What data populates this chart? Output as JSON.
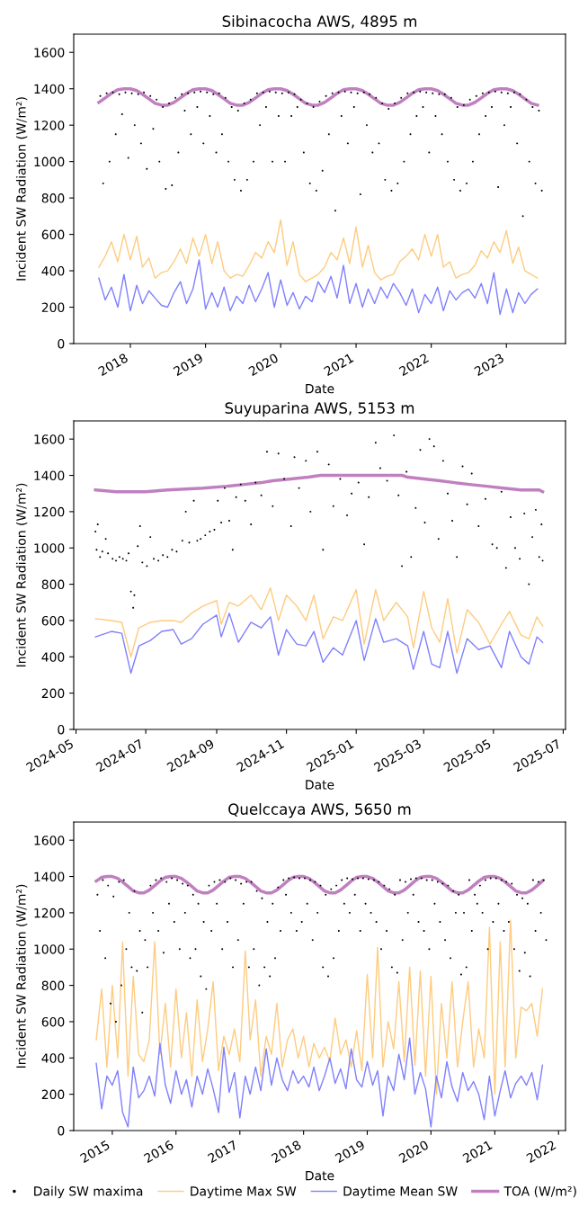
{
  "chart_data": [
    {
      "type": "line",
      "title": "Sibinacocha AWS, 4895 m",
      "xlabel": "Date",
      "ylabel": "Incident SW Radiation (W/m²)",
      "xlim": [
        "2017-04-01",
        "2023-10-15"
      ],
      "xticks": [
        "2018",
        "2019",
        "2020",
        "2021",
        "2022",
        "2023"
      ],
      "ylim": [
        0,
        1700
      ],
      "yticks": [
        0,
        200,
        400,
        600,
        800,
        1000,
        1200,
        1400,
        1600
      ],
      "x": [
        "2017-08",
        "2017-09",
        "2017-10",
        "2017-11",
        "2017-12",
        "2018-01",
        "2018-02",
        "2018-03",
        "2018-04",
        "2018-05",
        "2018-06",
        "2018-07",
        "2018-08",
        "2018-09",
        "2018-10",
        "2018-11",
        "2018-12",
        "2019-01",
        "2019-02",
        "2019-03",
        "2019-04",
        "2019-05",
        "2019-06",
        "2019-07",
        "2019-08",
        "2019-09",
        "2019-10",
        "2019-11",
        "2019-12",
        "2020-01",
        "2020-02",
        "2020-03",
        "2020-04",
        "2020-05",
        "2020-06",
        "2020-07",
        "2020-08",
        "2020-09",
        "2020-10",
        "2020-11",
        "2020-12",
        "2021-01",
        "2021-02",
        "2021-03",
        "2021-04",
        "2021-05",
        "2021-06",
        "2021-07",
        "2021-08",
        "2021-09",
        "2021-10",
        "2021-11",
        "2021-12",
        "2022-01",
        "2022-02",
        "2022-03",
        "2022-04",
        "2022-05",
        "2022-06",
        "2022-07",
        "2022-08",
        "2022-09",
        "2022-10",
        "2022-11",
        "2022-12",
        "2023-01",
        "2023-02",
        "2023-03",
        "2023-04",
        "2023-05",
        "2023-06"
      ],
      "series": [
        {
          "type": "scatter",
          "color": "#000000",
          "x": [
            "2017-08-08",
            "2017-08-22",
            "2017-09-08",
            "2017-09-22",
            "2017-10-08",
            "2017-10-22",
            "2017-11-08",
            "2017-11-22",
            "2017-12-08",
            "2017-12-22",
            "2018-01-08",
            "2018-01-22",
            "2018-02-08",
            "2018-02-22",
            "2018-03-08",
            "2018-03-22",
            "2018-04-08",
            "2018-04-22",
            "2018-05-08",
            "2018-05-22",
            "2018-06-08",
            "2018-06-22",
            "2018-07-08",
            "2018-07-22",
            "2018-08-08",
            "2018-08-22",
            "2018-09-08",
            "2018-09-22",
            "2018-10-08",
            "2018-10-22",
            "2018-11-08",
            "2018-11-22",
            "2018-12-08",
            "2018-12-22",
            "2019-01-08",
            "2019-01-22",
            "2019-02-08",
            "2019-02-22",
            "2019-03-08",
            "2019-03-22",
            "2019-04-08",
            "2019-04-22",
            "2019-05-08",
            "2019-05-22",
            "2019-06-08",
            "2019-06-22",
            "2019-07-08",
            "2019-07-22",
            "2019-08-08",
            "2019-08-22",
            "2019-09-08",
            "2019-09-22",
            "2019-10-08",
            "2019-10-22",
            "2019-11-08",
            "2019-11-22",
            "2019-12-08",
            "2019-12-22",
            "2020-01-08",
            "2020-01-22",
            "2020-02-08",
            "2020-02-22",
            "2020-03-08",
            "2020-03-22",
            "2020-04-08",
            "2020-04-22",
            "2020-05-08",
            "2020-05-22",
            "2020-06-08",
            "2020-06-22",
            "2020-07-08",
            "2020-07-22",
            "2020-08-08",
            "2020-08-22",
            "2020-09-08",
            "2020-09-22",
            "2020-10-08",
            "2020-10-22",
            "2020-11-08",
            "2020-11-22",
            "2020-12-08",
            "2020-12-22",
            "2021-01-08",
            "2021-01-22",
            "2021-02-08",
            "2021-02-22",
            "2021-03-08",
            "2021-03-22",
            "2021-04-08",
            "2021-04-22",
            "2021-05-08",
            "2021-05-22",
            "2021-06-08",
            "2021-06-22",
            "2021-07-08",
            "2021-07-22",
            "2021-08-08",
            "2021-08-22",
            "2021-09-08",
            "2021-09-22",
            "2021-10-08",
            "2021-10-22",
            "2021-11-08",
            "2021-11-22",
            "2021-12-08",
            "2021-12-22",
            "2022-01-08",
            "2022-01-22",
            "2022-02-08",
            "2022-02-22",
            "2022-03-08",
            "2022-03-22",
            "2022-04-08",
            "2022-04-22",
            "2022-05-08",
            "2022-05-22",
            "2022-06-08",
            "2022-06-22",
            "2022-07-08",
            "2022-07-22",
            "2022-08-08",
            "2022-08-22",
            "2022-09-08",
            "2022-09-22",
            "2022-10-08",
            "2022-10-22",
            "2022-11-08",
            "2022-11-22",
            "2022-12-08",
            "2022-12-22",
            "2023-01-08",
            "2023-01-22",
            "2023-02-08",
            "2023-02-22",
            "2023-03-08",
            "2023-03-22",
            "2023-04-08",
            "2023-04-22",
            "2023-05-08",
            "2023-05-22",
            "2023-06-08",
            "2023-06-22"
          ],
          "values": [
            1360,
            880,
            1375,
            1000,
            1380,
            1150,
            1370,
            1260,
            1380,
            1020,
            1375,
            1200,
            1370,
            1100,
            1380,
            960,
            1360,
            1180,
            1340,
            1000,
            1300,
            850,
            1320,
            870,
            1350,
            1050,
            1370,
            1280,
            1375,
            1150,
            1380,
            1300,
            1385,
            1100,
            1380,
            1250,
            1370,
            1050,
            1375,
            1150,
            1350,
            1000,
            1300,
            900,
            1280,
            840,
            1320,
            900,
            1340,
            1000,
            1375,
            1200,
            1380,
            1300,
            1385,
            1000,
            1380,
            1250,
            1375,
            1000,
            1380,
            1250,
            1370,
            1300,
            1340,
            1050,
            1320,
            880,
            1300,
            840,
            1330,
            950,
            1360,
            1150,
            1375,
            730,
            1380,
            1250,
            1385,
            1100,
            1380,
            1300,
            1375,
            820,
            1380,
            1200,
            1370,
            1050,
            1350,
            1100,
            1320,
            900,
            1290,
            840,
            1320,
            880,
            1350,
            1000,
            1375,
            1150,
            1380,
            1250,
            1385,
            1300,
            1380,
            1050,
            1375,
            1250,
            1370,
            1150,
            1370,
            1000,
            1350,
            900,
            1300,
            840,
            1310,
            880,
            1340,
            1000,
            1360,
            1150,
            1375,
            1250,
            1380,
            1300,
            1385,
            860,
            1380,
            1200,
            1375,
            1300,
            1380,
            1100,
            1370,
            700,
            1340,
            1000,
            1300,
            880,
            1280,
            840
          ]
        },
        {
          "type": "line",
          "color": "#fecb7f",
          "values": [
            420,
            480,
            560,
            450,
            600,
            460,
            590,
            420,
            470,
            360,
            390,
            400,
            450,
            520,
            440,
            580,
            480,
            600,
            440,
            560,
            400,
            360,
            380,
            370,
            430,
            500,
            470,
            560,
            500,
            680,
            430,
            560,
            380,
            340,
            360,
            380,
            420,
            500,
            460,
            580,
            440,
            640,
            420,
            540,
            390,
            350,
            370,
            380,
            450,
            480,
            520,
            460,
            600,
            480,
            600,
            420,
            450,
            360,
            380,
            390,
            430,
            510,
            470,
            560,
            500,
            620,
            440,
            530,
            400,
            380,
            360
          ]
        },
        {
          "type": "line",
          "color": "#7f7ffe",
          "values": [
            360,
            240,
            310,
            200,
            380,
            180,
            320,
            220,
            290,
            250,
            210,
            200,
            280,
            340,
            220,
            300,
            460,
            190,
            280,
            200,
            310,
            180,
            260,
            220,
            320,
            230,
            300,
            390,
            200,
            350,
            210,
            280,
            190,
            260,
            230,
            340,
            280,
            370,
            250,
            430,
            220,
            330,
            200,
            300,
            220,
            310,
            250,
            330,
            280,
            210,
            300,
            170,
            270,
            220,
            310,
            180,
            290,
            240,
            280,
            300,
            250,
            330,
            220,
            390,
            160,
            300,
            170,
            280,
            220,
            270,
            300
          ]
        },
        {
          "type": "line",
          "color": "#c080c0",
          "values": [
            1325,
            1350,
            1375,
            1395,
            1400,
            1400,
            1390,
            1370,
            1345,
            1320,
            1310,
            1310,
            1325,
            1350,
            1375,
            1395,
            1400,
            1400,
            1390,
            1370,
            1345,
            1320,
            1310,
            1310,
            1325,
            1350,
            1375,
            1395,
            1400,
            1400,
            1390,
            1370,
            1345,
            1320,
            1310,
            1310,
            1325,
            1350,
            1375,
            1395,
            1400,
            1400,
            1390,
            1370,
            1345,
            1320,
            1310,
            1310,
            1325,
            1350,
            1375,
            1395,
            1400,
            1400,
            1390,
            1370,
            1345,
            1320,
            1310,
            1310,
            1325,
            1350,
            1375,
            1395,
            1400,
            1400,
            1390,
            1370,
            1345,
            1320,
            1310
          ]
        }
      ]
    },
    {
      "type": "line",
      "title": "Suyuparina AWS, 5153 m",
      "xlabel": "Date",
      "ylabel": "Incident SW Radiation (W/m²)",
      "xlim": [
        "2024-04-29",
        "2025-07-03"
      ],
      "xticks": [
        "2024-05",
        "2024-07",
        "2024-09",
        "2024-11",
        "2025-01",
        "2025-03",
        "2025-05",
        "2025-07"
      ],
      "ylim": [
        0,
        1700
      ],
      "yticks": [
        0,
        200,
        400,
        600,
        800,
        1000,
        1200,
        1400,
        1600
      ],
      "x": [
        "2024-05-18",
        "2024-06-01",
        "2024-06-10",
        "2024-06-18",
        "2024-06-25",
        "2024-07-05",
        "2024-07-15",
        "2024-07-25",
        "2024-08-01",
        "2024-08-10",
        "2024-08-20",
        "2024-09-01",
        "2024-09-05",
        "2024-09-12",
        "2024-09-20",
        "2024-10-01",
        "2024-10-10",
        "2024-10-18",
        "2024-10-25",
        "2024-11-01",
        "2024-11-10",
        "2024-11-18",
        "2024-11-25",
        "2024-12-03",
        "2024-12-12",
        "2024-12-20",
        "2025-01-01",
        "2025-01-08",
        "2025-01-18",
        "2025-01-25",
        "2025-02-05",
        "2025-02-15",
        "2025-02-20",
        "2025-03-01",
        "2025-03-08",
        "2025-03-15",
        "2025-03-22",
        "2025-03-30",
        "2025-04-08",
        "2025-04-18",
        "2025-04-28",
        "2025-05-08",
        "2025-05-15",
        "2025-05-25",
        "2025-06-01",
        "2025-06-08",
        "2025-06-13"
      ],
      "series": [
        {
          "type": "scatter",
          "color": "#000000",
          "x": [
            "2024-05-18",
            "2024-05-19",
            "2024-05-20",
            "2024-05-22",
            "2024-05-24",
            "2024-05-27",
            "2024-05-29",
            "2024-06-02",
            "2024-06-05",
            "2024-06-08",
            "2024-06-11",
            "2024-06-14",
            "2024-06-16",
            "2024-06-18",
            "2024-06-20",
            "2024-06-21",
            "2024-06-24",
            "2024-06-26",
            "2024-06-28",
            "2024-07-02",
            "2024-07-05",
            "2024-07-08",
            "2024-07-12",
            "2024-07-16",
            "2024-07-20",
            "2024-07-24",
            "2024-07-28",
            "2024-08-02",
            "2024-08-05",
            "2024-08-08",
            "2024-08-12",
            "2024-08-15",
            "2024-08-18",
            "2024-08-22",
            "2024-08-26",
            "2024-08-30",
            "2024-09-02",
            "2024-09-05",
            "2024-09-08",
            "2024-09-12",
            "2024-09-15",
            "2024-09-18",
            "2024-09-22",
            "2024-09-26",
            "2024-10-01",
            "2024-10-05",
            "2024-10-10",
            "2024-10-15",
            "2024-10-20",
            "2024-10-25",
            "2024-10-30",
            "2024-11-05",
            "2024-11-08",
            "2024-11-12",
            "2024-11-18",
            "2024-11-22",
            "2024-11-28",
            "2024-12-03",
            "2024-12-08",
            "2024-12-12",
            "2024-12-18",
            "2024-12-24",
            "2024-12-28",
            "2025-01-03",
            "2025-01-08",
            "2025-01-12",
            "2025-01-18",
            "2025-01-22",
            "2025-01-28",
            "2025-02-03",
            "2025-02-07",
            "2025-02-10",
            "2025-02-14",
            "2025-02-18",
            "2025-02-22",
            "2025-02-26",
            "2025-03-02",
            "2025-03-06",
            "2025-03-10",
            "2025-03-14",
            "2025-03-18",
            "2025-03-22",
            "2025-03-26",
            "2025-03-30",
            "2025-04-04",
            "2025-04-08",
            "2025-04-12",
            "2025-04-18",
            "2025-04-24",
            "2025-04-30",
            "2025-05-04",
            "2025-05-08",
            "2025-05-12",
            "2025-05-16",
            "2025-05-20",
            "2025-05-24",
            "2025-05-28",
            "2025-06-01",
            "2025-06-04",
            "2025-06-07",
            "2025-06-10",
            "2025-06-12",
            "2025-06-13"
          ],
          "values": [
            1090,
            990,
            1130,
            950,
            980,
            1050,
            970,
            940,
            930,
            950,
            940,
            930,
            970,
            760,
            670,
            740,
            1010,
            1120,
            920,
            900,
            1060,
            940,
            930,
            960,
            950,
            990,
            980,
            1040,
            1200,
            1030,
            1260,
            1040,
            1050,
            1070,
            1090,
            1100,
            1260,
            1140,
            1330,
            1150,
            990,
            1280,
            1350,
            1260,
            1130,
            1360,
            1290,
            1530,
            1230,
            1520,
            1380,
            1120,
            1500,
            1330,
            1480,
            1200,
            1530,
            990,
            1460,
            1230,
            1380,
            1180,
            1300,
            1360,
            1020,
            1280,
            1580,
            1440,
            1370,
            1620,
            1290,
            900,
            1420,
            950,
            1220,
            1540,
            1140,
            1600,
            1560,
            1050,
            1480,
            1300,
            1150,
            950,
            1450,
            1240,
            1410,
            1120,
            1270,
            1020,
            1000,
            1310,
            890,
            1170,
            1000,
            940,
            1190,
            800,
            1060,
            1210,
            950,
            1130,
            930
          ]
        },
        {
          "type": "line",
          "color": "#fecb7f",
          "values": [
            610,
            600,
            590,
            400,
            560,
            590,
            600,
            600,
            590,
            640,
            680,
            710,
            580,
            700,
            680,
            740,
            660,
            780,
            600,
            740,
            680,
            600,
            740,
            500,
            620,
            600,
            770,
            470,
            770,
            600,
            700,
            620,
            450,
            760,
            560,
            480,
            720,
            420,
            660,
            590,
            470,
            580,
            650,
            520,
            500,
            620,
            570
          ]
        },
        {
          "type": "line",
          "color": "#7f7ffe",
          "values": [
            510,
            540,
            530,
            310,
            460,
            490,
            540,
            550,
            470,
            500,
            580,
            630,
            510,
            640,
            480,
            590,
            560,
            620,
            410,
            550,
            470,
            460,
            540,
            370,
            450,
            410,
            600,
            380,
            610,
            480,
            500,
            460,
            330,
            540,
            360,
            340,
            540,
            310,
            500,
            440,
            460,
            340,
            540,
            400,
            360,
            510,
            480
          ]
        },
        {
          "type": "line",
          "color": "#c080c0",
          "x": [
            "2024-05-18",
            "2024-06-05",
            "2024-07-01",
            "2024-07-20",
            "2024-08-20",
            "2024-09-10",
            "2024-09-25",
            "2024-10-10",
            "2024-10-20",
            "2024-11-05",
            "2024-11-20",
            "2024-12-01",
            "2025-01-10",
            "2025-02-10",
            "2025-02-15",
            "2025-03-01",
            "2025-03-15",
            "2025-03-28",
            "2025-04-10",
            "2025-04-25",
            "2025-05-10",
            "2025-05-25",
            "2025-06-10",
            "2025-06-13"
          ],
          "values": [
            1320,
            1310,
            1310,
            1320,
            1330,
            1340,
            1350,
            1360,
            1370,
            1380,
            1390,
            1400,
            1400,
            1400,
            1390,
            1380,
            1370,
            1360,
            1350,
            1340,
            1330,
            1320,
            1320,
            1310
          ]
        }
      ]
    },
    {
      "type": "line",
      "title": "Quelccaya AWS, 5650 m",
      "xlabel": "Date",
      "ylabel": "Incident SW Radiation (W/m²)",
      "legend": "bottom",
      "xlim": [
        "2014-05-25",
        "2022-02-10"
      ],
      "xticks": [
        "2015",
        "2016",
        "2017",
        "2018",
        "2019",
        "2020",
        "2021",
        "2022"
      ],
      "ylim": [
        0,
        1700
      ],
      "yticks": [
        0,
        200,
        400,
        600,
        800,
        1000,
        1200,
        1400,
        1600
      ],
      "x": [
        "2014-10",
        "2014-11",
        "2014-12",
        "2015-01",
        "2015-02",
        "2015-03",
        "2015-04",
        "2015-05",
        "2015-06",
        "2015-07",
        "2015-08",
        "2015-09",
        "2015-10",
        "2015-11",
        "2015-12",
        "2016-01",
        "2016-02",
        "2016-03",
        "2016-04",
        "2016-05",
        "2016-06",
        "2016-07",
        "2016-08",
        "2016-09",
        "2016-10",
        "2016-11",
        "2016-12",
        "2017-01",
        "2017-02",
        "2017-03",
        "2017-04",
        "2017-05",
        "2017-06",
        "2017-07",
        "2017-08",
        "2017-09",
        "2017-10",
        "2017-11",
        "2017-12",
        "2018-01",
        "2018-02",
        "2018-03",
        "2018-04",
        "2018-05",
        "2018-06",
        "2018-07",
        "2018-08",
        "2018-09",
        "2018-10",
        "2018-11",
        "2018-12",
        "2019-01",
        "2019-02",
        "2019-03",
        "2019-04",
        "2019-05",
        "2019-06",
        "2019-07",
        "2019-08",
        "2019-09",
        "2019-10",
        "2019-11",
        "2019-12",
        "2020-01",
        "2020-02",
        "2020-03",
        "2020-04",
        "2020-05",
        "2020-06",
        "2020-07",
        "2020-08",
        "2020-09",
        "2020-10",
        "2020-11",
        "2020-12",
        "2021-01",
        "2021-02",
        "2021-03",
        "2021-04",
        "2021-05",
        "2021-06",
        "2021-07",
        "2021-08",
        "2021-09",
        "2021-10"
      ],
      "series": [
        {
          "type": "scatter",
          "name": "Daily SW maxima",
          "color": "#000000",
          "x": [
            "2014-10-08",
            "2014-10-22",
            "2014-11-08",
            "2014-11-22",
            "2014-12-08",
            "2014-12-22",
            "2015-01-08",
            "2015-01-22",
            "2015-02-08",
            "2015-02-22",
            "2015-03-08",
            "2015-03-22",
            "2015-04-08",
            "2015-04-22",
            "2015-05-08",
            "2015-05-22",
            "2015-06-08",
            "2015-06-22",
            "2015-07-08",
            "2015-07-22",
            "2015-08-08",
            "2015-08-22",
            "2015-09-08",
            "2015-09-22",
            "2015-10-08",
            "2015-10-22",
            "2015-11-08",
            "2015-11-22",
            "2015-12-08",
            "2015-12-22",
            "2016-01-08",
            "2016-01-22",
            "2016-02-08",
            "2016-02-22",
            "2016-03-08",
            "2016-03-22",
            "2016-04-08",
            "2016-04-22",
            "2016-05-08",
            "2016-05-22",
            "2016-06-08",
            "2016-06-22",
            "2016-07-08",
            "2016-07-22",
            "2016-08-08",
            "2016-08-22",
            "2016-09-08",
            "2016-09-22",
            "2016-10-08",
            "2016-10-22",
            "2016-11-08",
            "2016-11-22",
            "2016-12-08",
            "2016-12-22",
            "2017-01-08",
            "2017-01-22",
            "2017-02-08",
            "2017-02-22",
            "2017-03-08",
            "2017-03-22",
            "2017-04-08",
            "2017-04-22",
            "2017-05-08",
            "2017-05-22",
            "2017-06-08",
            "2017-06-22",
            "2017-07-08",
            "2017-07-22",
            "2017-08-08",
            "2017-08-22",
            "2017-09-08",
            "2017-09-22",
            "2017-10-08",
            "2017-10-22",
            "2017-11-08",
            "2017-11-22",
            "2017-12-08",
            "2017-12-22",
            "2018-01-08",
            "2018-01-22",
            "2018-02-08",
            "2018-02-22",
            "2018-03-08",
            "2018-03-22",
            "2018-04-08",
            "2018-04-22",
            "2018-05-08",
            "2018-05-22",
            "2018-06-08",
            "2018-06-22",
            "2018-07-08",
            "2018-07-22",
            "2018-08-08",
            "2018-08-22",
            "2018-09-08",
            "2018-09-22",
            "2018-10-08",
            "2018-10-22",
            "2018-11-08",
            "2018-11-22",
            "2018-12-08",
            "2018-12-22",
            "2019-01-08",
            "2019-01-22",
            "2019-02-08",
            "2019-02-22",
            "2019-03-08",
            "2019-03-22",
            "2019-04-08",
            "2019-04-22",
            "2019-05-08",
            "2019-05-22",
            "2019-06-08",
            "2019-06-22",
            "2019-07-08",
            "2019-07-22",
            "2019-08-08",
            "2019-08-22",
            "2019-09-08",
            "2019-09-22",
            "2019-10-08",
            "2019-10-22",
            "2019-11-08",
            "2019-11-22",
            "2019-12-08",
            "2019-12-22",
            "2020-01-08",
            "2020-01-22",
            "2020-02-08",
            "2020-02-22",
            "2020-03-08",
            "2020-03-22",
            "2020-04-08",
            "2020-04-22",
            "2020-05-08",
            "2020-05-22",
            "2020-06-08",
            "2020-06-22",
            "2020-07-08",
            "2020-07-22",
            "2020-08-08",
            "2020-08-22",
            "2020-09-08",
            "2020-09-22",
            "2020-10-08",
            "2020-10-22",
            "2020-11-08",
            "2020-11-22",
            "2020-12-08",
            "2020-12-22",
            "2021-01-08",
            "2021-01-22",
            "2021-02-08",
            "2021-02-22",
            "2021-03-08",
            "2021-03-22",
            "2021-04-08",
            "2021-04-22",
            "2021-05-08",
            "2021-05-22",
            "2021-06-08",
            "2021-06-22",
            "2021-07-08",
            "2021-07-22",
            "2021-08-08",
            "2021-08-22",
            "2021-09-08",
            "2021-09-22",
            "2021-10-08",
            "2021-10-22"
          ],
          "values": [
            1300,
            1100,
            1380,
            950,
            1350,
            700,
            1290,
            600,
            1370,
            800,
            1380,
            1000,
            1200,
            900,
            1320,
            880,
            1100,
            650,
            1050,
            900,
            1350,
            1200,
            1380,
            1100,
            1390,
            980,
            1370,
            1250,
            1390,
            1150,
            1380,
            1000,
            1360,
            1200,
            1350,
            950,
            1300,
            1000,
            1250,
            850,
            1150,
            780,
            1350,
            1100,
            1370,
            1250,
            1380,
            1000,
            1370,
            1150,
            1390,
            900,
            1380,
            1050,
            1360,
            1250,
            1370,
            900,
            1370,
            1000,
            1320,
            800,
            1280,
            900,
            1150,
            850,
            1250,
            950,
            1340,
            1100,
            1380,
            1300,
            1390,
            1200,
            1395,
            1100,
            1390,
            1150,
            1390,
            1250,
            1380,
            1050,
            1370,
            1200,
            1350,
            900,
            1300,
            850,
            1330,
            950,
            1350,
            1100,
            1380,
            1250,
            1390,
            1200,
            1385,
            1300,
            1390,
            1100,
            1390,
            1250,
            1385,
            1200,
            1380,
            1150,
            1370,
            1000,
            1350,
            1100,
            1330,
            900,
            1300,
            870,
            1380,
            1050,
            1370,
            1200,
            1385,
            1300,
            1390,
            1150,
            1390,
            1100,
            1380,
            1000,
            1380,
            1250,
            1370,
            1150,
            1360,
            1050,
            1350,
            950,
            1320,
            1200,
            1300,
            860,
            1200,
            900,
            1380,
            1100,
            1300,
            1250,
            1350,
            1200,
            1380,
            1000,
            1390,
            1150,
            1390,
            1250,
            1380,
            1100,
            1370,
            1150,
            1360,
            1000,
            1300,
            880,
            1280,
            980,
            1250,
            850,
            1380,
            1100,
            1370,
            1200,
            1380,
            1050
          ]
        },
        {
          "type": "line",
          "name": "Daytime Max SW",
          "color": "#fecb7f",
          "values": [
            500,
            780,
            350,
            800,
            400,
            1040,
            300,
            850,
            420,
            380,
            500,
            1040,
            420,
            700,
            350,
            780,
            400,
            650,
            300,
            720,
            380,
            560,
            820,
            330,
            520,
            420,
            560,
            380,
            990,
            500,
            720,
            300,
            520,
            420,
            700,
            350,
            500,
            560,
            400,
            520,
            350,
            480,
            400,
            460,
            380,
            620,
            420,
            500,
            350,
            550,
            330,
            860,
            400,
            1010,
            350,
            600,
            450,
            820,
            380,
            900,
            360,
            880,
            300,
            850,
            200,
            700,
            400,
            820,
            350,
            600,
            820,
            350,
            560,
            400,
            1120,
            200,
            1040,
            350,
            1160,
            400,
            680,
            660,
            700,
            520,
            780
          ]
        },
        {
          "type": "line",
          "name": "Daytime Mean SW",
          "color": "#7f7ffe",
          "values": [
            370,
            120,
            300,
            250,
            330,
            100,
            20,
            350,
            180,
            220,
            300,
            190,
            480,
            250,
            150,
            330,
            200,
            280,
            130,
            300,
            200,
            340,
            230,
            100,
            460,
            210,
            320,
            70,
            300,
            200,
            350,
            220,
            450,
            250,
            400,
            280,
            220,
            330,
            260,
            300,
            240,
            350,
            220,
            300,
            400,
            260,
            340,
            230,
            450,
            280,
            240,
            380,
            250,
            330,
            80,
            300,
            220,
            420,
            280,
            510,
            200,
            320,
            230,
            20,
            300,
            180,
            380,
            240,
            160,
            320,
            220,
            270,
            200,
            60,
            300,
            80,
            220,
            330,
            180,
            260,
            300,
            250,
            320,
            170,
            360
          ]
        },
        {
          "type": "line",
          "name": "TOA (W/m²)",
          "color": "#c080c0",
          "values": [
            1375,
            1395,
            1400,
            1400,
            1390,
            1370,
            1345,
            1320,
            1310,
            1310,
            1325,
            1350,
            1375,
            1395,
            1400,
            1400,
            1390,
            1370,
            1345,
            1320,
            1310,
            1310,
            1325,
            1350,
            1375,
            1395,
            1400,
            1400,
            1390,
            1370,
            1345,
            1320,
            1310,
            1310,
            1325,
            1350,
            1375,
            1395,
            1400,
            1400,
            1390,
            1370,
            1345,
            1320,
            1310,
            1310,
            1325,
            1350,
            1375,
            1395,
            1400,
            1400,
            1390,
            1370,
            1345,
            1320,
            1310,
            1310,
            1325,
            1350,
            1375,
            1395,
            1400,
            1400,
            1390,
            1370,
            1345,
            1320,
            1310,
            1310,
            1325,
            1350,
            1375,
            1395,
            1400,
            1400,
            1390,
            1370,
            1345,
            1320,
            1310,
            1310,
            1325,
            1350,
            1375
          ]
        }
      ]
    }
  ]
}
